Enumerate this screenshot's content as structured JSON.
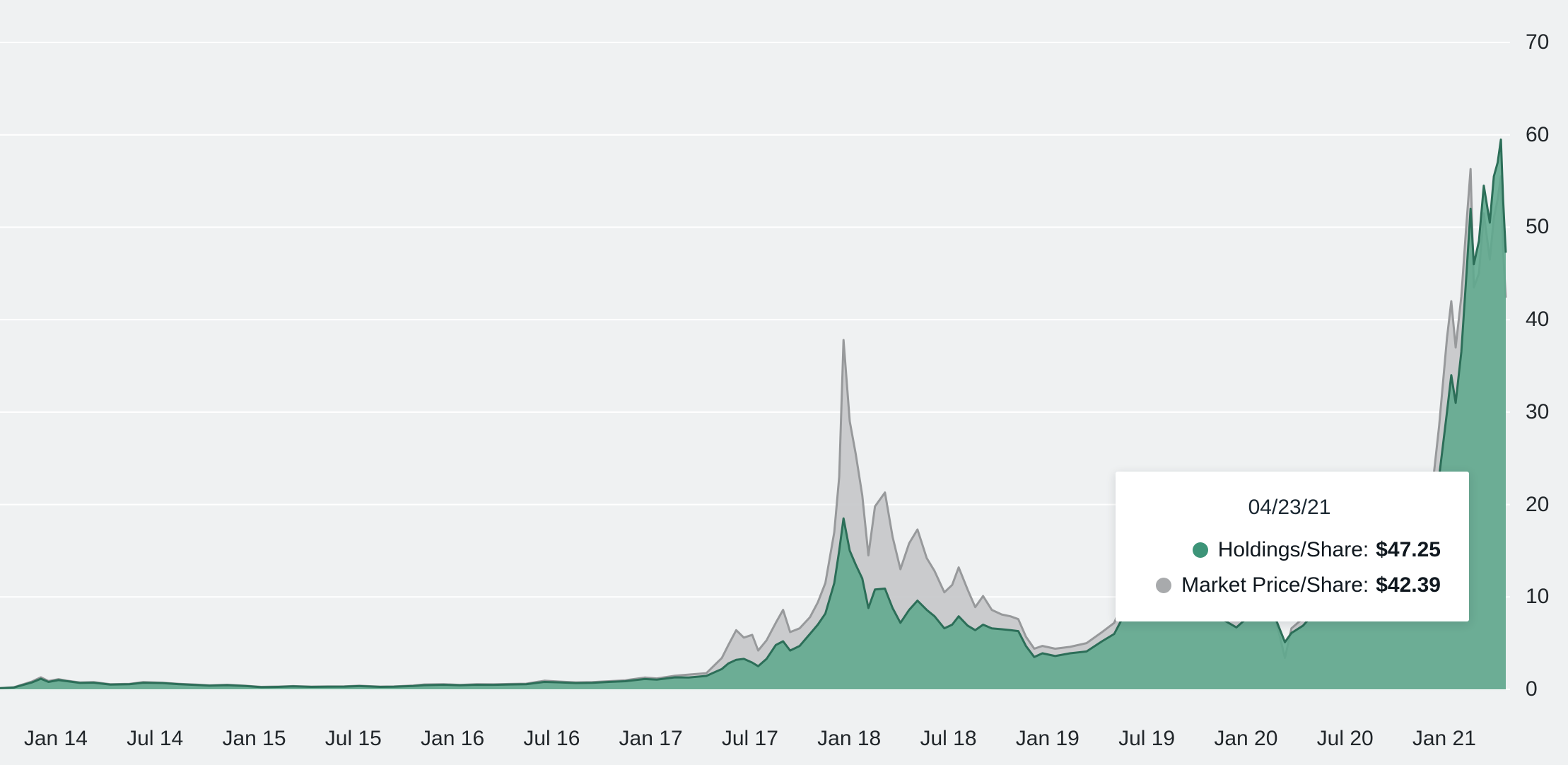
{
  "tooltip": {
    "date": "04/23/21",
    "rows": [
      {
        "label": "Holdings/Share:",
        "value": "$47.25",
        "color": "#3d9478"
      },
      {
        "label": "Market Price/Share:",
        "value": "$42.39",
        "color": "#a8aaac"
      }
    ]
  },
  "colors": {
    "background": "#eff1f2",
    "gridline": "#ffffff",
    "holdings_line": "#2c6e58",
    "holdings_fill": "#5ea98d",
    "market_line": "#97999b",
    "market_fill": "#c7c8ca"
  },
  "chart_data": {
    "type": "area",
    "title": "",
    "xlabel": "",
    "ylabel": "",
    "legend_position": "tooltip",
    "grid": true,
    "ylim": [
      0,
      70
    ],
    "y_ticks": [
      0,
      10,
      20,
      30,
      40,
      50,
      60,
      70
    ],
    "x_domain": [
      "2013-09-20",
      "2021-04-23"
    ],
    "x_ticks": [
      {
        "label": "Jan 14",
        "date": "2014-01-01"
      },
      {
        "label": "Jul 14",
        "date": "2014-07-01"
      },
      {
        "label": "Jan 15",
        "date": "2015-01-01"
      },
      {
        "label": "Jul 15",
        "date": "2015-07-01"
      },
      {
        "label": "Jan 16",
        "date": "2016-01-01"
      },
      {
        "label": "Jul 16",
        "date": "2016-07-01"
      },
      {
        "label": "Jan 17",
        "date": "2017-01-01"
      },
      {
        "label": "Jul 17",
        "date": "2017-07-01"
      },
      {
        "label": "Jan 18",
        "date": "2018-01-01"
      },
      {
        "label": "Jul 18",
        "date": "2018-07-01"
      },
      {
        "label": "Jan 19",
        "date": "2019-01-01"
      },
      {
        "label": "Jul 19",
        "date": "2019-07-01"
      },
      {
        "label": "Jan 20",
        "date": "2020-01-01"
      },
      {
        "label": "Jul 20",
        "date": "2020-07-01"
      },
      {
        "label": "Jan 21",
        "date": "2021-01-01"
      }
    ],
    "dates": [
      "2013-09-20",
      "2013-10-15",
      "2013-11-18",
      "2013-12-04",
      "2013-12-18",
      "2014-01-06",
      "2014-01-20",
      "2014-02-15",
      "2014-03-10",
      "2014-04-10",
      "2014-05-15",
      "2014-06-10",
      "2014-07-15",
      "2014-08-15",
      "2014-09-15",
      "2014-10-10",
      "2014-11-12",
      "2014-12-15",
      "2015-01-14",
      "2015-02-15",
      "2015-03-12",
      "2015-04-15",
      "2015-05-15",
      "2015-06-15",
      "2015-07-12",
      "2015-08-20",
      "2015-09-15",
      "2015-10-20",
      "2015-11-10",
      "2015-12-15",
      "2016-01-15",
      "2016-02-15",
      "2016-03-15",
      "2016-04-15",
      "2016-05-15",
      "2016-06-18",
      "2016-07-15",
      "2016-08-15",
      "2016-09-15",
      "2016-10-15",
      "2016-11-15",
      "2016-12-20",
      "2017-01-12",
      "2017-02-15",
      "2017-03-10",
      "2017-04-12",
      "2017-05-10",
      "2017-05-22",
      "2017-06-06",
      "2017-06-20",
      "2017-07-05",
      "2017-07-16",
      "2017-08-01",
      "2017-08-18",
      "2017-09-01",
      "2017-09-14",
      "2017-10-01",
      "2017-10-20",
      "2017-11-04",
      "2017-11-18",
      "2017-12-04",
      "2017-12-13",
      "2017-12-21",
      "2018-01-02",
      "2018-01-13",
      "2018-01-25",
      "2018-02-06",
      "2018-02-18",
      "2018-03-06",
      "2018-03-20",
      "2018-04-04",
      "2018-04-20",
      "2018-05-05",
      "2018-05-22",
      "2018-06-06",
      "2018-06-24",
      "2018-07-08",
      "2018-07-20",
      "2018-08-06",
      "2018-08-20",
      "2018-09-04",
      "2018-09-20",
      "2018-10-08",
      "2018-10-24",
      "2018-11-08",
      "2018-11-22",
      "2018-12-07",
      "2018-12-22",
      "2019-01-15",
      "2019-02-12",
      "2019-03-12",
      "2019-04-10",
      "2019-05-02",
      "2019-05-18",
      "2019-06-04",
      "2019-06-26",
      "2019-07-12",
      "2019-08-06",
      "2019-08-22",
      "2019-09-16",
      "2019-10-12",
      "2019-11-12",
      "2019-12-14",
      "2020-01-14",
      "2020-02-12",
      "2020-03-12",
      "2020-03-24",
      "2020-04-15",
      "2020-05-12",
      "2020-06-12",
      "2020-07-14",
      "2020-08-14",
      "2020-09-14",
      "2020-10-14",
      "2020-11-12",
      "2020-11-24",
      "2020-12-08",
      "2020-12-22",
      "2021-01-06",
      "2021-01-14",
      "2021-01-22",
      "2021-02-02",
      "2021-02-11",
      "2021-02-19",
      "2021-02-25",
      "2021-03-04",
      "2021-03-13",
      "2021-03-24",
      "2021-04-01",
      "2021-04-08",
      "2021-04-14",
      "2021-04-18",
      "2021-04-23"
    ],
    "series": [
      {
        "name": "Holdings/Share",
        "color": "#2c6e58",
        "fill": "#5ea98d",
        "fill_opacity": 0.88,
        "values": [
          0.12,
          0.2,
          0.75,
          1.15,
          0.8,
          1.0,
          0.9,
          0.7,
          0.72,
          0.52,
          0.55,
          0.72,
          0.68,
          0.56,
          0.48,
          0.4,
          0.45,
          0.36,
          0.24,
          0.27,
          0.32,
          0.27,
          0.28,
          0.3,
          0.35,
          0.27,
          0.28,
          0.37,
          0.45,
          0.5,
          0.44,
          0.5,
          0.49,
          0.53,
          0.55,
          0.8,
          0.76,
          0.68,
          0.71,
          0.8,
          0.88,
          1.12,
          1.05,
          1.3,
          1.28,
          1.45,
          2.2,
          2.8,
          3.2,
          3.3,
          2.9,
          2.5,
          3.3,
          4.8,
          5.2,
          4.2,
          4.7,
          6.0,
          7.0,
          8.2,
          11.5,
          15.0,
          18.5,
          15.0,
          13.5,
          12.0,
          8.8,
          10.8,
          10.9,
          8.8,
          7.2,
          8.6,
          9.6,
          8.6,
          7.9,
          6.6,
          7.0,
          7.9,
          6.9,
          6.4,
          7.0,
          6.6,
          6.5,
          6.4,
          6.3,
          4.7,
          3.5,
          3.9,
          3.6,
          3.9,
          4.1,
          5.2,
          6.0,
          7.8,
          9.0,
          11.4,
          10.0,
          10.6,
          9.4,
          8.7,
          8.0,
          7.8,
          6.7,
          8.3,
          9.6,
          5.1,
          6.1,
          6.9,
          8.7,
          8.8,
          9.3,
          11.4,
          10.2,
          11.9,
          15.0,
          17.5,
          18.0,
          23.0,
          30.0,
          34.0,
          31.0,
          36.5,
          44.5,
          52.0,
          46.0,
          48.5,
          54.5,
          50.5,
          55.5,
          57.0,
          59.5,
          53.0,
          47.25
        ]
      },
      {
        "name": "Market Price/Share",
        "color": "#97999b",
        "fill": "#c7c8ca",
        "fill_opacity": 0.92,
        "values": [
          0.13,
          0.22,
          0.85,
          1.3,
          0.9,
          1.1,
          0.95,
          0.75,
          0.78,
          0.56,
          0.6,
          0.78,
          0.72,
          0.6,
          0.51,
          0.43,
          0.5,
          0.39,
          0.27,
          0.3,
          0.35,
          0.3,
          0.31,
          0.33,
          0.39,
          0.3,
          0.31,
          0.41,
          0.53,
          0.56,
          0.48,
          0.55,
          0.54,
          0.58,
          0.61,
          0.93,
          0.84,
          0.76,
          0.79,
          0.88,
          0.98,
          1.28,
          1.18,
          1.48,
          1.6,
          1.75,
          3.4,
          4.8,
          6.4,
          5.6,
          5.9,
          4.2,
          5.3,
          7.2,
          8.6,
          6.2,
          6.6,
          7.8,
          9.4,
          11.5,
          17.0,
          23.0,
          37.8,
          29.0,
          25.5,
          21.0,
          14.5,
          19.8,
          21.3,
          16.5,
          13.0,
          15.8,
          17.3,
          14.2,
          12.8,
          10.5,
          11.3,
          13.2,
          10.8,
          8.9,
          10.1,
          8.6,
          8.1,
          7.9,
          7.6,
          5.7,
          4.4,
          4.7,
          4.4,
          4.6,
          5.0,
          6.2,
          7.2,
          9.4,
          11.0,
          13.4,
          12.0,
          12.2,
          10.9,
          9.7,
          9.1,
          8.7,
          7.5,
          9.4,
          10.9,
          3.4,
          6.6,
          7.7,
          9.7,
          9.8,
          10.3,
          12.7,
          11.0,
          13.3,
          17.3,
          20.5,
          21.0,
          28.5,
          38.0,
          42.0,
          37.0,
          42.5,
          50.0,
          56.3,
          43.5,
          45.0,
          51.5,
          46.5,
          51.0,
          53.0,
          55.5,
          47.5,
          42.39
        ]
      }
    ]
  }
}
